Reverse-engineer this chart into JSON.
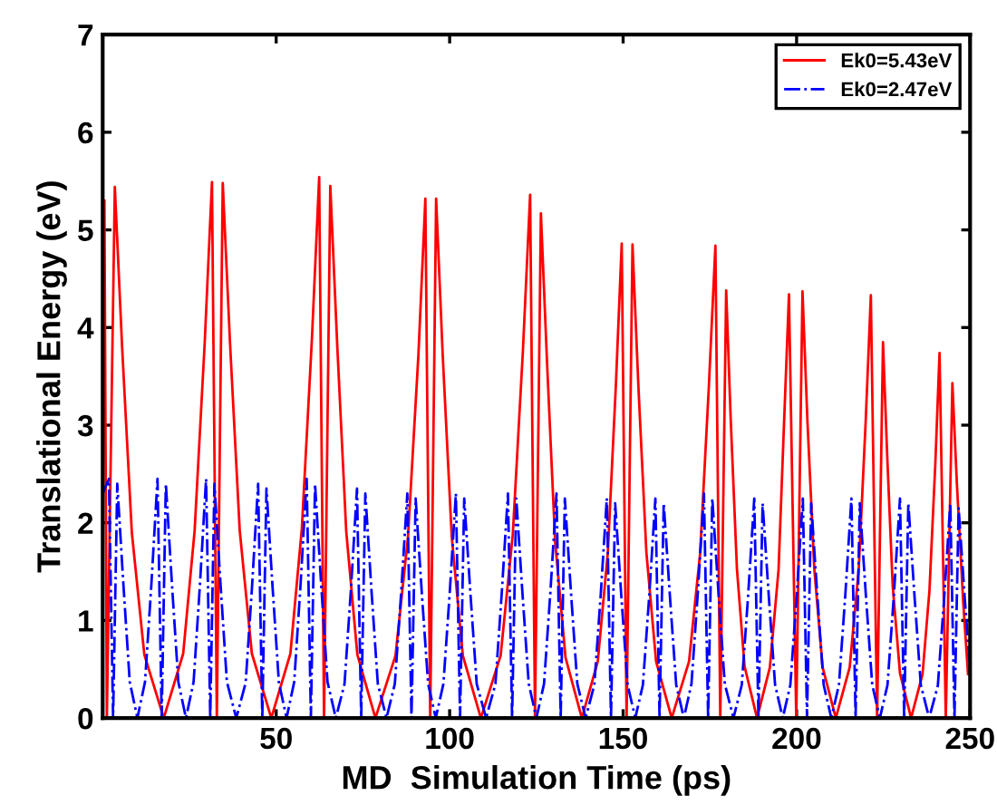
{
  "chart_data": {
    "type": "line",
    "xlabel": "MD  Simulation Time (ps)",
    "ylabel": "Translational Energy (eV)",
    "xlim": [
      0,
      250
    ],
    "ylim": [
      0,
      7
    ],
    "xticks": [
      50,
      100,
      150,
      200,
      250
    ],
    "yticks": [
      0,
      1,
      2,
      3,
      4,
      5,
      6,
      7
    ],
    "grid": false,
    "legend": "top right",
    "marker": "none",
    "series": [
      {
        "name": "Ek0=5.43eV",
        "color": "#ff0000",
        "line_style": "solid",
        "x": [
          0.5,
          1.2,
          3.5,
          5.6,
          8.4,
          12,
          17.6,
          23.2,
          26.5,
          29.4,
          31.5,
          32.9,
          34.6,
          36.7,
          39.5,
          43,
          48.6,
          54.1,
          57.4,
          60.3,
          62.4,
          63.8,
          65.6,
          67.6,
          70.2,
          73.4,
          78.6,
          84.4,
          88,
          91,
          93,
          94.4,
          96.1,
          98,
          100.6,
          103.8,
          109,
          114.7,
          118.2,
          121.1,
          123.2,
          124.6,
          126.3,
          128.1,
          130.4,
          133.4,
          138.1,
          142.7,
          145.6,
          147.9,
          149.6,
          151,
          152.7,
          154.4,
          156.7,
          159.5,
          164,
          169,
          172.2,
          174.7,
          176.6,
          178,
          179.7,
          181,
          182.8,
          185,
          188.6,
          192.3,
          194.8,
          196.4,
          197.8,
          199.9,
          201.7,
          203.1,
          205.1,
          207.5,
          211.3,
          215.3,
          217.9,
          219.9,
          221.4,
          223.2,
          224.9,
          226.1,
          227.7,
          229.8,
          233,
          236.3,
          238.3,
          240,
          241.2,
          243,
          244.9,
          246.2,
          248,
          249.4
        ],
        "values": [
          5.3,
          0,
          5.44,
          3.8,
          1.9,
          0.65,
          0,
          0.66,
          1.92,
          3.84,
          5.49,
          0,
          5.48,
          3.84,
          1.92,
          0.66,
          0,
          0.66,
          1.94,
          3.88,
          5.54,
          0,
          5.45,
          3.82,
          1.91,
          0.65,
          0,
          0.64,
          1.86,
          3.72,
          5.32,
          0,
          5.32,
          3.72,
          1.86,
          0.64,
          0,
          0.64,
          1.88,
          3.75,
          5.36,
          0,
          5.17,
          3.62,
          1.81,
          0.62,
          0,
          0.58,
          1.7,
          3.4,
          4.86,
          0,
          4.85,
          3.4,
          1.7,
          0.58,
          0,
          0.58,
          1.69,
          3.39,
          4.84,
          0,
          4.38,
          3.07,
          1.53,
          0.53,
          0,
          0.52,
          1.52,
          3.04,
          4.34,
          0,
          4.37,
          3.06,
          1.53,
          0.52,
          0,
          0.52,
          1.52,
          3.03,
          4.33,
          0,
          3.85,
          2.7,
          1.35,
          0.46,
          0,
          0.45,
          1.31,
          2.62,
          3.74,
          0,
          3.43,
          2.4,
          1.2,
          0.45
        ]
      },
      {
        "name": "Ek0=2.47eV",
        "color": "#0000ff",
        "line_style": "dashdot",
        "x": [
          0,
          1.8,
          3,
          4.2,
          6,
          7.8,
          10,
          12.2,
          14,
          15.8,
          17,
          18.2,
          20,
          21.8,
          24,
          26.2,
          28,
          29.8,
          31,
          32.2,
          34,
          35.8,
          38.5,
          41.2,
          43,
          44.8,
          46,
          47.2,
          49,
          50.8,
          53,
          55.2,
          57,
          58.8,
          60,
          61.2,
          63,
          64.8,
          67.2,
          69.7,
          71.5,
          73.3,
          74.5,
          75.7,
          77.5,
          79.3,
          81.8,
          84.2,
          86,
          87.8,
          89,
          90.2,
          92,
          93.8,
          96,
          98.2,
          100,
          101.8,
          103,
          104.2,
          106,
          107.8,
          110.5,
          113.2,
          115,
          116.8,
          118,
          119.2,
          121,
          122.8,
          125,
          127.2,
          129,
          130.8,
          132,
          133.2,
          135,
          136.8,
          139.2,
          141.7,
          143.5,
          145.3,
          146.5,
          147.7,
          149.5,
          151.3,
          153.5,
          155.7,
          157.5,
          159.3,
          160.5,
          161.7,
          163.5,
          165.3,
          167.5,
          169.7,
          171.5,
          173.3,
          174.5,
          175.7,
          177.5,
          179.3,
          181.8,
          184.2,
          186,
          187.8,
          189,
          190.2,
          192,
          193.8,
          196,
          198.2,
          200,
          201.8,
          203,
          204.2,
          206,
          207.8,
          210,
          212.2,
          214,
          215.8,
          217,
          218.2,
          220,
          221.8,
          224,
          226.2,
          228,
          229.8,
          231,
          232.2,
          234,
          235.8,
          238.2,
          240.7,
          242.5,
          244.3,
          245.5,
          246.7,
          248.5,
          250
        ],
        "values": [
          2.3,
          2.45,
          0,
          2.4,
          1.35,
          0.37,
          0,
          0.37,
          1.35,
          2.45,
          0,
          2.4,
          1.35,
          0.37,
          0,
          0.37,
          1.35,
          2.45,
          0,
          2.4,
          1.35,
          0.37,
          0,
          0.36,
          1.32,
          2.4,
          0,
          2.35,
          1.32,
          0.36,
          0,
          0.37,
          1.35,
          2.45,
          0,
          2.4,
          1.35,
          0.37,
          0,
          0.35,
          1.29,
          2.35,
          0,
          2.3,
          1.29,
          0.35,
          0,
          0.35,
          1.27,
          2.3,
          0,
          2.25,
          1.27,
          0.35,
          0,
          0.35,
          1.27,
          2.3,
          0,
          2.25,
          1.27,
          0.35,
          0,
          0.35,
          1.27,
          2.3,
          0,
          2.25,
          1.27,
          0.35,
          0,
          0.35,
          1.27,
          2.3,
          0,
          2.25,
          1.27,
          0.35,
          0,
          0.34,
          1.24,
          2.25,
          0,
          2.2,
          1.24,
          0.34,
          0,
          0.34,
          1.24,
          2.25,
          0,
          2.2,
          1.24,
          0.34,
          0,
          0.35,
          1.27,
          2.3,
          0,
          2.25,
          1.27,
          0.35,
          0,
          0.34,
          1.24,
          2.25,
          0,
          2.2,
          1.24,
          0.34,
          0,
          0.34,
          1.24,
          2.25,
          0,
          2.2,
          1.24,
          0.34,
          0,
          0.34,
          1.24,
          2.25,
          0,
          2.2,
          1.24,
          0.34,
          0,
          0.34,
          1.24,
          2.25,
          0,
          2.2,
          1.24,
          0.34,
          0,
          0.33,
          1.21,
          2.2,
          0,
          2.15,
          1.21,
          0.5
        ]
      }
    ]
  }
}
